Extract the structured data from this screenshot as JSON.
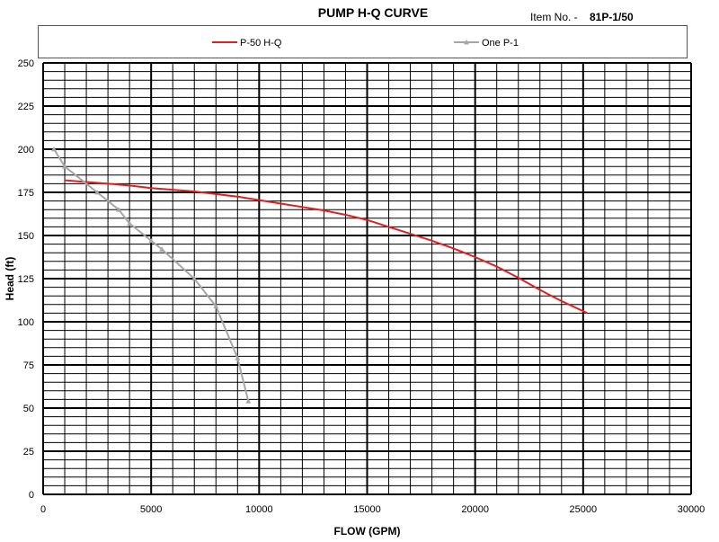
{
  "header": {
    "title": "PUMP H-Q CURVE",
    "item_label": "Item No. -",
    "item_value": "81P-1/50"
  },
  "chart_data": {
    "type": "line",
    "xlabel": "FLOW (GPM)",
    "ylabel": "Head (ft)",
    "xlim": [
      0,
      30000
    ],
    "ylim": [
      0,
      250
    ],
    "x_ticks": [
      0,
      5000,
      10000,
      15000,
      20000,
      25000,
      30000
    ],
    "y_ticks": [
      0,
      25,
      50,
      75,
      100,
      125,
      150,
      175,
      200,
      225,
      250
    ],
    "grid": true,
    "legend": "top",
    "series": [
      {
        "name": "P-50 H-Q",
        "color": "#e02020",
        "marker": "none",
        "x": [
          1000,
          2000,
          3000,
          4000,
          5000,
          6000,
          7000,
          8000,
          9000,
          10000,
          11000,
          12000,
          13000,
          14000,
          15000,
          16000,
          17000,
          18000,
          19000,
          20000,
          21000,
          22000,
          23000,
          24000,
          25200
        ],
        "y": [
          182,
          181,
          180,
          179,
          177.5,
          176.5,
          175.5,
          174,
          172.5,
          170.5,
          168.5,
          166.5,
          164.5,
          162,
          159,
          155,
          151,
          147,
          142.5,
          137.5,
          132,
          125.5,
          118.5,
          112,
          105
        ]
      },
      {
        "name": "One P-1",
        "color": "#a6a6a6",
        "marker": "triangle",
        "x": [
          500,
          1000,
          2500,
          3500,
          4000,
          5000,
          5500,
          7000,
          8000,
          9000,
          9500
        ],
        "y": [
          200,
          190,
          175,
          165,
          157,
          147,
          142,
          125,
          109,
          79,
          54
        ]
      }
    ]
  }
}
